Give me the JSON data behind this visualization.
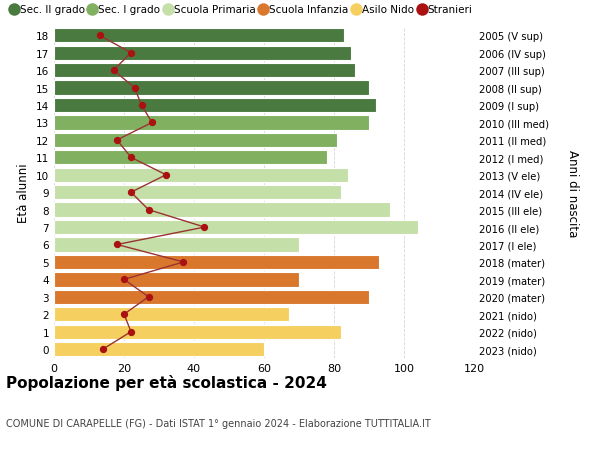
{
  "ages": [
    0,
    1,
    2,
    3,
    4,
    5,
    6,
    7,
    8,
    9,
    10,
    11,
    12,
    13,
    14,
    15,
    16,
    17,
    18
  ],
  "bar_values": [
    60,
    82,
    67,
    90,
    70,
    93,
    70,
    104,
    96,
    82,
    84,
    78,
    81,
    90,
    92,
    90,
    86,
    85,
    83
  ],
  "stranieri": [
    14,
    22,
    20,
    27,
    20,
    37,
    18,
    43,
    27,
    22,
    32,
    22,
    18,
    28,
    25,
    23,
    17,
    22,
    13
  ],
  "right_labels": [
    "2023 (nido)",
    "2022 (nido)",
    "2021 (nido)",
    "2020 (mater)",
    "2019 (mater)",
    "2018 (mater)",
    "2017 (I ele)",
    "2016 (II ele)",
    "2015 (III ele)",
    "2014 (IV ele)",
    "2013 (V ele)",
    "2012 (I med)",
    "2011 (II med)",
    "2010 (III med)",
    "2009 (I sup)",
    "2008 (II sup)",
    "2007 (III sup)",
    "2006 (IV sup)",
    "2005 (V sup)"
  ],
  "colors": {
    "sec2": "#4a7a40",
    "sec1": "#80b060",
    "primaria": "#c5dfa8",
    "infanzia": "#d9782d",
    "nido": "#f5d060"
  },
  "bar_colors": [
    "#f5d060",
    "#f5d060",
    "#f5d060",
    "#d9782d",
    "#d9782d",
    "#d9782d",
    "#c5dfa8",
    "#c5dfa8",
    "#c5dfa8",
    "#c5dfa8",
    "#c5dfa8",
    "#80b060",
    "#80b060",
    "#80b060",
    "#4a7a40",
    "#4a7a40",
    "#4a7a40",
    "#4a7a40",
    "#4a7a40"
  ],
  "stranieri_color": "#aa1111",
  "line_color": "#993333",
  "title": "Popolazione per età scolastica - 2024",
  "subtitle": "COMUNE DI CARAPELLE (FG) - Dati ISTAT 1° gennaio 2024 - Elaborazione TUTTITALIA.IT",
  "ylabel": "Età alunni",
  "ylabel_right": "Anni di nascita",
  "xlim": [
    0,
    120
  ],
  "ylim": [
    -0.5,
    18.5
  ],
  "bg_color": "#ffffff",
  "grid_color": "#cccccc",
  "legend_labels": [
    "Sec. II grado",
    "Sec. I grado",
    "Scuola Primaria",
    "Scuola Infanzia",
    "Asilo Nido",
    "Stranieri"
  ]
}
